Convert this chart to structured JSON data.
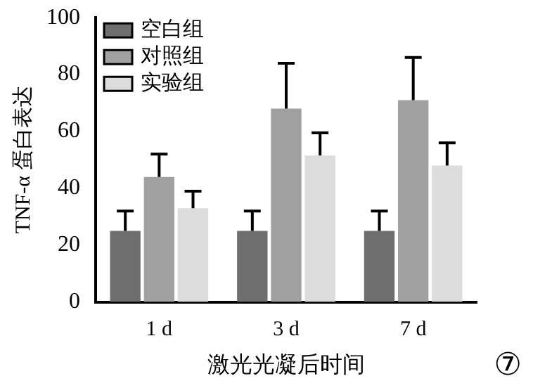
{
  "chart_data": {
    "type": "bar",
    "xlabel": "激光光凝后时间",
    "ylabel": "TNF-α 蛋白表达",
    "categories": [
      "1 d",
      "3 d",
      "7 d"
    ],
    "series": [
      {
        "name": "空白组",
        "color": "#6e6e6e",
        "values": [
          25,
          25,
          25
        ],
        "errors": [
          [
            25,
            32
          ],
          [
            25,
            32
          ],
          [
            25,
            32
          ]
        ]
      },
      {
        "name": "对照组",
        "color": "#a0a0a0",
        "values": [
          44,
          68,
          71
        ],
        "errors": [
          [
            44,
            52
          ],
          [
            68,
            84
          ],
          [
            71,
            86
          ]
        ]
      },
      {
        "name": "实验组",
        "color": "#dcdcdc",
        "values": [
          33,
          51.5,
          48
        ],
        "errors": [
          [
            33,
            39
          ],
          [
            51.5,
            59.5
          ],
          [
            48,
            56
          ]
        ]
      }
    ],
    "ylim": [
      0,
      100
    ],
    "yticks": [
      0,
      20,
      40,
      60,
      80,
      100
    ],
    "grid": false,
    "legend": "top left",
    "annotations": [
      "⑦"
    ]
  }
}
